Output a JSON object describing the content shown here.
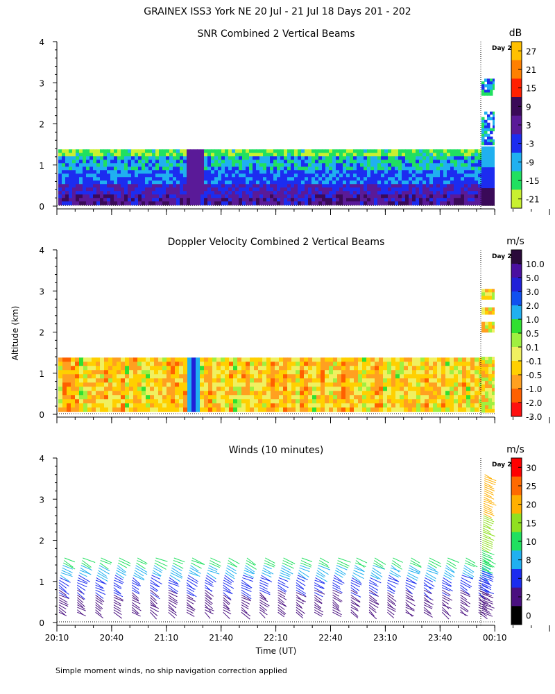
{
  "figure": {
    "title": "GRAINEX ISS3 York NE  20 Jul - 21 Jul 18 Days 201 - 202",
    "footnote": "Simple moment winds, no ship navigation correction applied",
    "y_axis_label": "Altitude (km)",
    "x_axis_label": "Time (UT)",
    "day_marker_label": "Day 2"
  },
  "chart_data": [
    {
      "type": "heatmap",
      "title": "SNR Combined 2 Vertical Beams",
      "yticks": [
        "0",
        "1",
        "2",
        "3",
        "4"
      ],
      "ylim": [
        0,
        4
      ],
      "colorbar": {
        "unit": "dB",
        "labels": [
          "27",
          "21",
          "15",
          "9",
          "3",
          "-3",
          "-9",
          "-15",
          "-21"
        ],
        "colors": [
          "#ffc000",
          "#ff8000",
          "#ff2000",
          "#3a0a58",
          "#5a1a98",
          "#1c2cf0",
          "#20b0f0",
          "#20e060",
          "#c8f030"
        ]
      }
    },
    {
      "type": "heatmap",
      "title": "Doppler Velocity Combined 2 Vertical Beams",
      "yticks": [
        "0",
        "1",
        "2",
        "3",
        "4"
      ],
      "ylim": [
        0,
        4
      ],
      "colorbar": {
        "unit": "m/s",
        "labels": [
          "10.0",
          "5.0",
          "3.0",
          "2.0",
          "1.0",
          "0.5",
          "0.1",
          "-0.1",
          "-0.5",
          "-1.0",
          "-2.0",
          "-3.0"
        ],
        "colors": [
          "#2a0a3a",
          "#4a10a0",
          "#2020d8",
          "#1050f0",
          "#20b0f0",
          "#30e030",
          "#a0f040",
          "#f0f060",
          "#ffd000",
          "#ffa020",
          "#ff6000",
          "#ff1010"
        ]
      }
    },
    {
      "type": "scatter",
      "title": "Winds (10 minutes)",
      "yticks": [
        "0",
        "1",
        "2",
        "3",
        "4"
      ],
      "ylim": [
        0,
        4
      ],
      "xticks": [
        "20:10",
        "20:40",
        "21:10",
        "21:40",
        "22:10",
        "22:40",
        "23:10",
        "23:40",
        "00:10"
      ],
      "colorbar": {
        "unit": "m/s",
        "labels": [
          "30",
          "25",
          "20",
          "15",
          "10",
          "8",
          "4",
          "2",
          "0"
        ],
        "colors": [
          "#ff0000",
          "#ff6a00",
          "#ffb000",
          "#90e020",
          "#20e060",
          "#20b0f0",
          "#1c2cf0",
          "#4a1080",
          "#000000"
        ]
      }
    }
  ]
}
